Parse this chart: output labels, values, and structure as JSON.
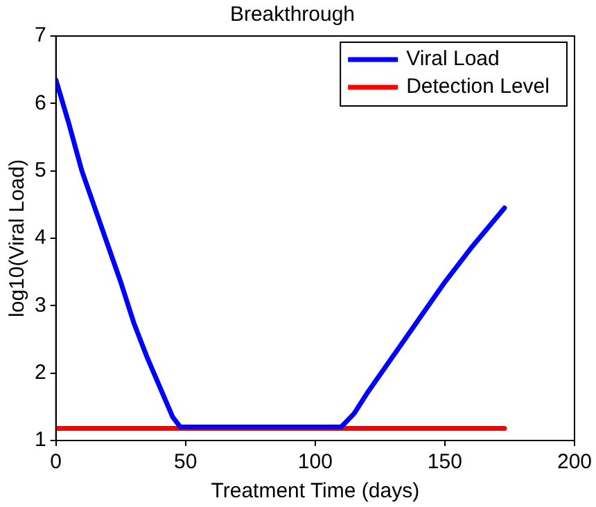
{
  "chart_data": {
    "type": "line",
    "title": "Breakthrough",
    "xlabel": "Treatment Time (days)",
    "ylabel": "log10(Viral Load)",
    "xlim": [
      0,
      200
    ],
    "xticks": [
      0,
      50,
      100,
      150,
      200
    ],
    "ylim": [
      1,
      7
    ],
    "yticks": [
      1,
      2,
      3,
      4,
      5,
      6,
      7
    ],
    "grid": false,
    "legend": "top right",
    "marker": "none",
    "line_style": "solid",
    "series": [
      {
        "name": "Viral Load",
        "color": "#0000ff",
        "x": [
          0,
          5,
          10,
          15,
          20,
          25,
          30,
          35,
          40,
          45,
          48,
          110,
          115,
          120,
          130,
          140,
          150,
          160,
          173
        ],
        "values": [
          6.35,
          5.7,
          5.0,
          4.45,
          3.9,
          3.35,
          2.75,
          2.25,
          1.8,
          1.35,
          1.2,
          1.2,
          1.4,
          1.7,
          2.25,
          2.8,
          3.35,
          3.85,
          4.45
        ]
      },
      {
        "name": "Detection Level",
        "color": "#ff0000",
        "x": [
          0,
          173
        ],
        "values": [
          1.18,
          1.18
        ]
      }
    ]
  }
}
